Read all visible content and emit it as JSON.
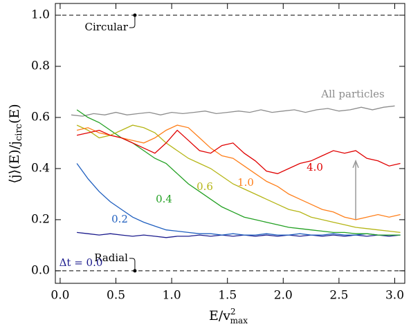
{
  "chart_data": {
    "type": "line",
    "xlabel": {
      "base": "E/v",
      "sup": "2",
      "sub": "max"
    },
    "ylabel": {
      "base": "⟨j⟩(E)/j",
      "sub": "circ",
      "tail": "(E)"
    },
    "xlim": [
      -0.043,
      3.09
    ],
    "ylim": [
      -0.049,
      1.046
    ],
    "xticks": [
      {
        "value": 0,
        "label": "0.0"
      },
      0.5,
      {
        "value": 1,
        "label": "1.0"
      },
      1.5,
      {
        "value": 2,
        "label": "2.0"
      },
      2.5,
      {
        "value": 3,
        "label": "3.0"
      }
    ],
    "yticks": [
      {
        "value": 0,
        "label": "0.0"
      },
      0.2,
      0.4,
      0.6,
      0.8,
      {
        "value": 1,
        "label": "1.0"
      }
    ],
    "reference_lines": [
      {
        "text": "Circular",
        "x": 0.67,
        "y": 1.0
      },
      {
        "text": "Radial",
        "x": 0.67,
        "y": 0.0
      }
    ],
    "arrow": {
      "x": 2.65,
      "from": 0.2,
      "to": 0.43
    },
    "series": [
      {
        "name": "All particles",
        "color": "#8c8c8c",
        "x": [
          0.1,
          0.2,
          0.3,
          0.4,
          0.5,
          0.6,
          0.7,
          0.8,
          0.9,
          1.0,
          1.1,
          1.2,
          1.3,
          1.4,
          1.5,
          1.6,
          1.7,
          1.8,
          1.9,
          2.0,
          2.1,
          2.2,
          2.3,
          2.4,
          2.5,
          2.6,
          2.7,
          2.8,
          2.9,
          3.0
        ],
        "values": [
          0.61,
          0.605,
          0.615,
          0.61,
          0.62,
          0.61,
          0.615,
          0.62,
          0.61,
          0.62,
          0.615,
          0.62,
          0.625,
          0.615,
          0.62,
          0.625,
          0.62,
          0.63,
          0.62,
          0.625,
          0.63,
          0.62,
          0.63,
          0.635,
          0.625,
          0.63,
          0.64,
          0.63,
          0.64,
          0.645
        ]
      },
      {
        "name": "Δt = 0.0",
        "color": "#1a1a8c",
        "x": [
          0.15,
          0.25,
          0.35,
          0.45,
          0.55,
          0.65,
          0.75,
          0.85,
          0.95,
          1.05,
          1.15,
          1.25,
          1.35,
          1.45,
          1.55,
          1.65,
          1.75,
          1.85,
          1.95,
          2.05,
          2.15,
          2.25,
          2.35,
          2.45,
          2.55,
          2.65,
          2.75,
          2.85,
          2.95,
          3.05
        ],
        "values": [
          0.15,
          0.145,
          0.14,
          0.145,
          0.14,
          0.135,
          0.14,
          0.135,
          0.13,
          0.135,
          0.135,
          0.14,
          0.135,
          0.14,
          0.135,
          0.14,
          0.135,
          0.14,
          0.135,
          0.14,
          0.135,
          0.14,
          0.135,
          0.14,
          0.135,
          0.14,
          0.135,
          0.14,
          0.135,
          0.14
        ]
      },
      {
        "name": "0.2",
        "color": "#1f5fbf",
        "x": [
          0.15,
          0.25,
          0.35,
          0.45,
          0.55,
          0.65,
          0.75,
          0.85,
          0.95,
          1.05,
          1.15,
          1.25,
          1.35,
          1.45,
          1.55,
          1.65,
          1.75,
          1.85,
          1.95,
          2.05,
          2.15,
          2.25,
          2.35,
          2.45,
          2.55,
          2.65,
          2.75,
          2.85,
          2.95,
          3.05
        ],
        "values": [
          0.42,
          0.36,
          0.31,
          0.27,
          0.24,
          0.21,
          0.19,
          0.175,
          0.16,
          0.155,
          0.15,
          0.145,
          0.145,
          0.14,
          0.145,
          0.14,
          0.14,
          0.145,
          0.14,
          0.14,
          0.145,
          0.14,
          0.14,
          0.145,
          0.14,
          0.14,
          0.145,
          0.14,
          0.14,
          0.14
        ]
      },
      {
        "name": "0.4",
        "color": "#22a022",
        "x": [
          0.15,
          0.25,
          0.35,
          0.45,
          0.55,
          0.65,
          0.75,
          0.85,
          0.95,
          1.05,
          1.15,
          1.25,
          1.35,
          1.45,
          1.55,
          1.65,
          1.75,
          1.85,
          1.95,
          2.05,
          2.15,
          2.25,
          2.35,
          2.45,
          2.55,
          2.65,
          2.75,
          2.85,
          2.95,
          3.05
        ],
        "values": [
          0.63,
          0.6,
          0.58,
          0.55,
          0.52,
          0.5,
          0.47,
          0.44,
          0.42,
          0.38,
          0.34,
          0.31,
          0.28,
          0.25,
          0.23,
          0.21,
          0.2,
          0.19,
          0.18,
          0.17,
          0.165,
          0.16,
          0.155,
          0.15,
          0.15,
          0.145,
          0.145,
          0.14,
          0.14,
          0.14
        ]
      },
      {
        "name": "0.6",
        "color": "#b5b515",
        "x": [
          0.15,
          0.25,
          0.35,
          0.45,
          0.55,
          0.65,
          0.75,
          0.85,
          0.95,
          1.05,
          1.15,
          1.25,
          1.35,
          1.45,
          1.55,
          1.65,
          1.75,
          1.85,
          1.95,
          2.05,
          2.15,
          2.25,
          2.35,
          2.45,
          2.55,
          2.65,
          2.75,
          2.85,
          2.95,
          3.05
        ],
        "values": [
          0.57,
          0.55,
          0.52,
          0.53,
          0.55,
          0.57,
          0.56,
          0.54,
          0.5,
          0.47,
          0.44,
          0.42,
          0.4,
          0.37,
          0.34,
          0.32,
          0.3,
          0.28,
          0.26,
          0.24,
          0.23,
          0.21,
          0.2,
          0.19,
          0.18,
          0.17,
          0.165,
          0.16,
          0.155,
          0.15
        ]
      },
      {
        "name": "1.0",
        "color": "#ff7f1a",
        "x": [
          0.15,
          0.25,
          0.35,
          0.45,
          0.55,
          0.65,
          0.75,
          0.85,
          0.95,
          1.05,
          1.15,
          1.25,
          1.35,
          1.45,
          1.55,
          1.65,
          1.75,
          1.85,
          1.95,
          2.05,
          2.15,
          2.25,
          2.35,
          2.45,
          2.55,
          2.65,
          2.75,
          2.85,
          2.95,
          3.05
        ],
        "values": [
          0.55,
          0.56,
          0.54,
          0.53,
          0.52,
          0.51,
          0.5,
          0.52,
          0.55,
          0.57,
          0.56,
          0.52,
          0.48,
          0.45,
          0.44,
          0.41,
          0.38,
          0.35,
          0.33,
          0.3,
          0.28,
          0.26,
          0.24,
          0.23,
          0.21,
          0.2,
          0.21,
          0.22,
          0.21,
          0.22
        ]
      },
      {
        "name": "4.0",
        "color": "#e00000",
        "x": [
          0.15,
          0.25,
          0.35,
          0.45,
          0.55,
          0.65,
          0.75,
          0.85,
          0.95,
          1.05,
          1.15,
          1.25,
          1.35,
          1.45,
          1.55,
          1.65,
          1.75,
          1.85,
          1.95,
          2.05,
          2.15,
          2.25,
          2.35,
          2.45,
          2.55,
          2.65,
          2.75,
          2.85,
          2.95,
          3.05
        ],
        "values": [
          0.53,
          0.54,
          0.55,
          0.53,
          0.52,
          0.5,
          0.48,
          0.46,
          0.5,
          0.55,
          0.51,
          0.47,
          0.46,
          0.49,
          0.5,
          0.46,
          0.43,
          0.39,
          0.38,
          0.4,
          0.42,
          0.43,
          0.45,
          0.47,
          0.46,
          0.47,
          0.44,
          0.43,
          0.41,
          0.42
        ]
      }
    ]
  }
}
